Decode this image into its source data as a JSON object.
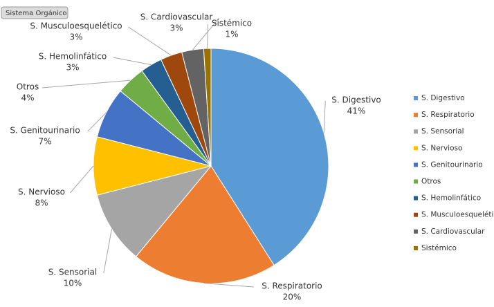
{
  "chart_data": {
    "type": "pie",
    "field_button": "Sistema Orgánico",
    "categories": [
      "S. Digestivo",
      "S. Respiratorio",
      "S. Sensorial",
      "S. Nervioso",
      "S. Genitourinario",
      "Otros",
      "S. Hemolinfático",
      "S. Musculoesquelético",
      "S. Cardiovascular",
      "Sistémico"
    ],
    "values": [
      41,
      20,
      10,
      8,
      7,
      4,
      3,
      3,
      3,
      1
    ],
    "value_labels": [
      "41%",
      "20%",
      "10%",
      "8%",
      "7%",
      "4%",
      "3%",
      "3%",
      "3%",
      "1%"
    ],
    "colors": [
      "#5b9bd5",
      "#ed7d31",
      "#a5a5a5",
      "#ffc000",
      "#4472c4",
      "#70ad47",
      "#255e91",
      "#9e480e",
      "#636363",
      "#997300"
    ],
    "legend": "right"
  }
}
